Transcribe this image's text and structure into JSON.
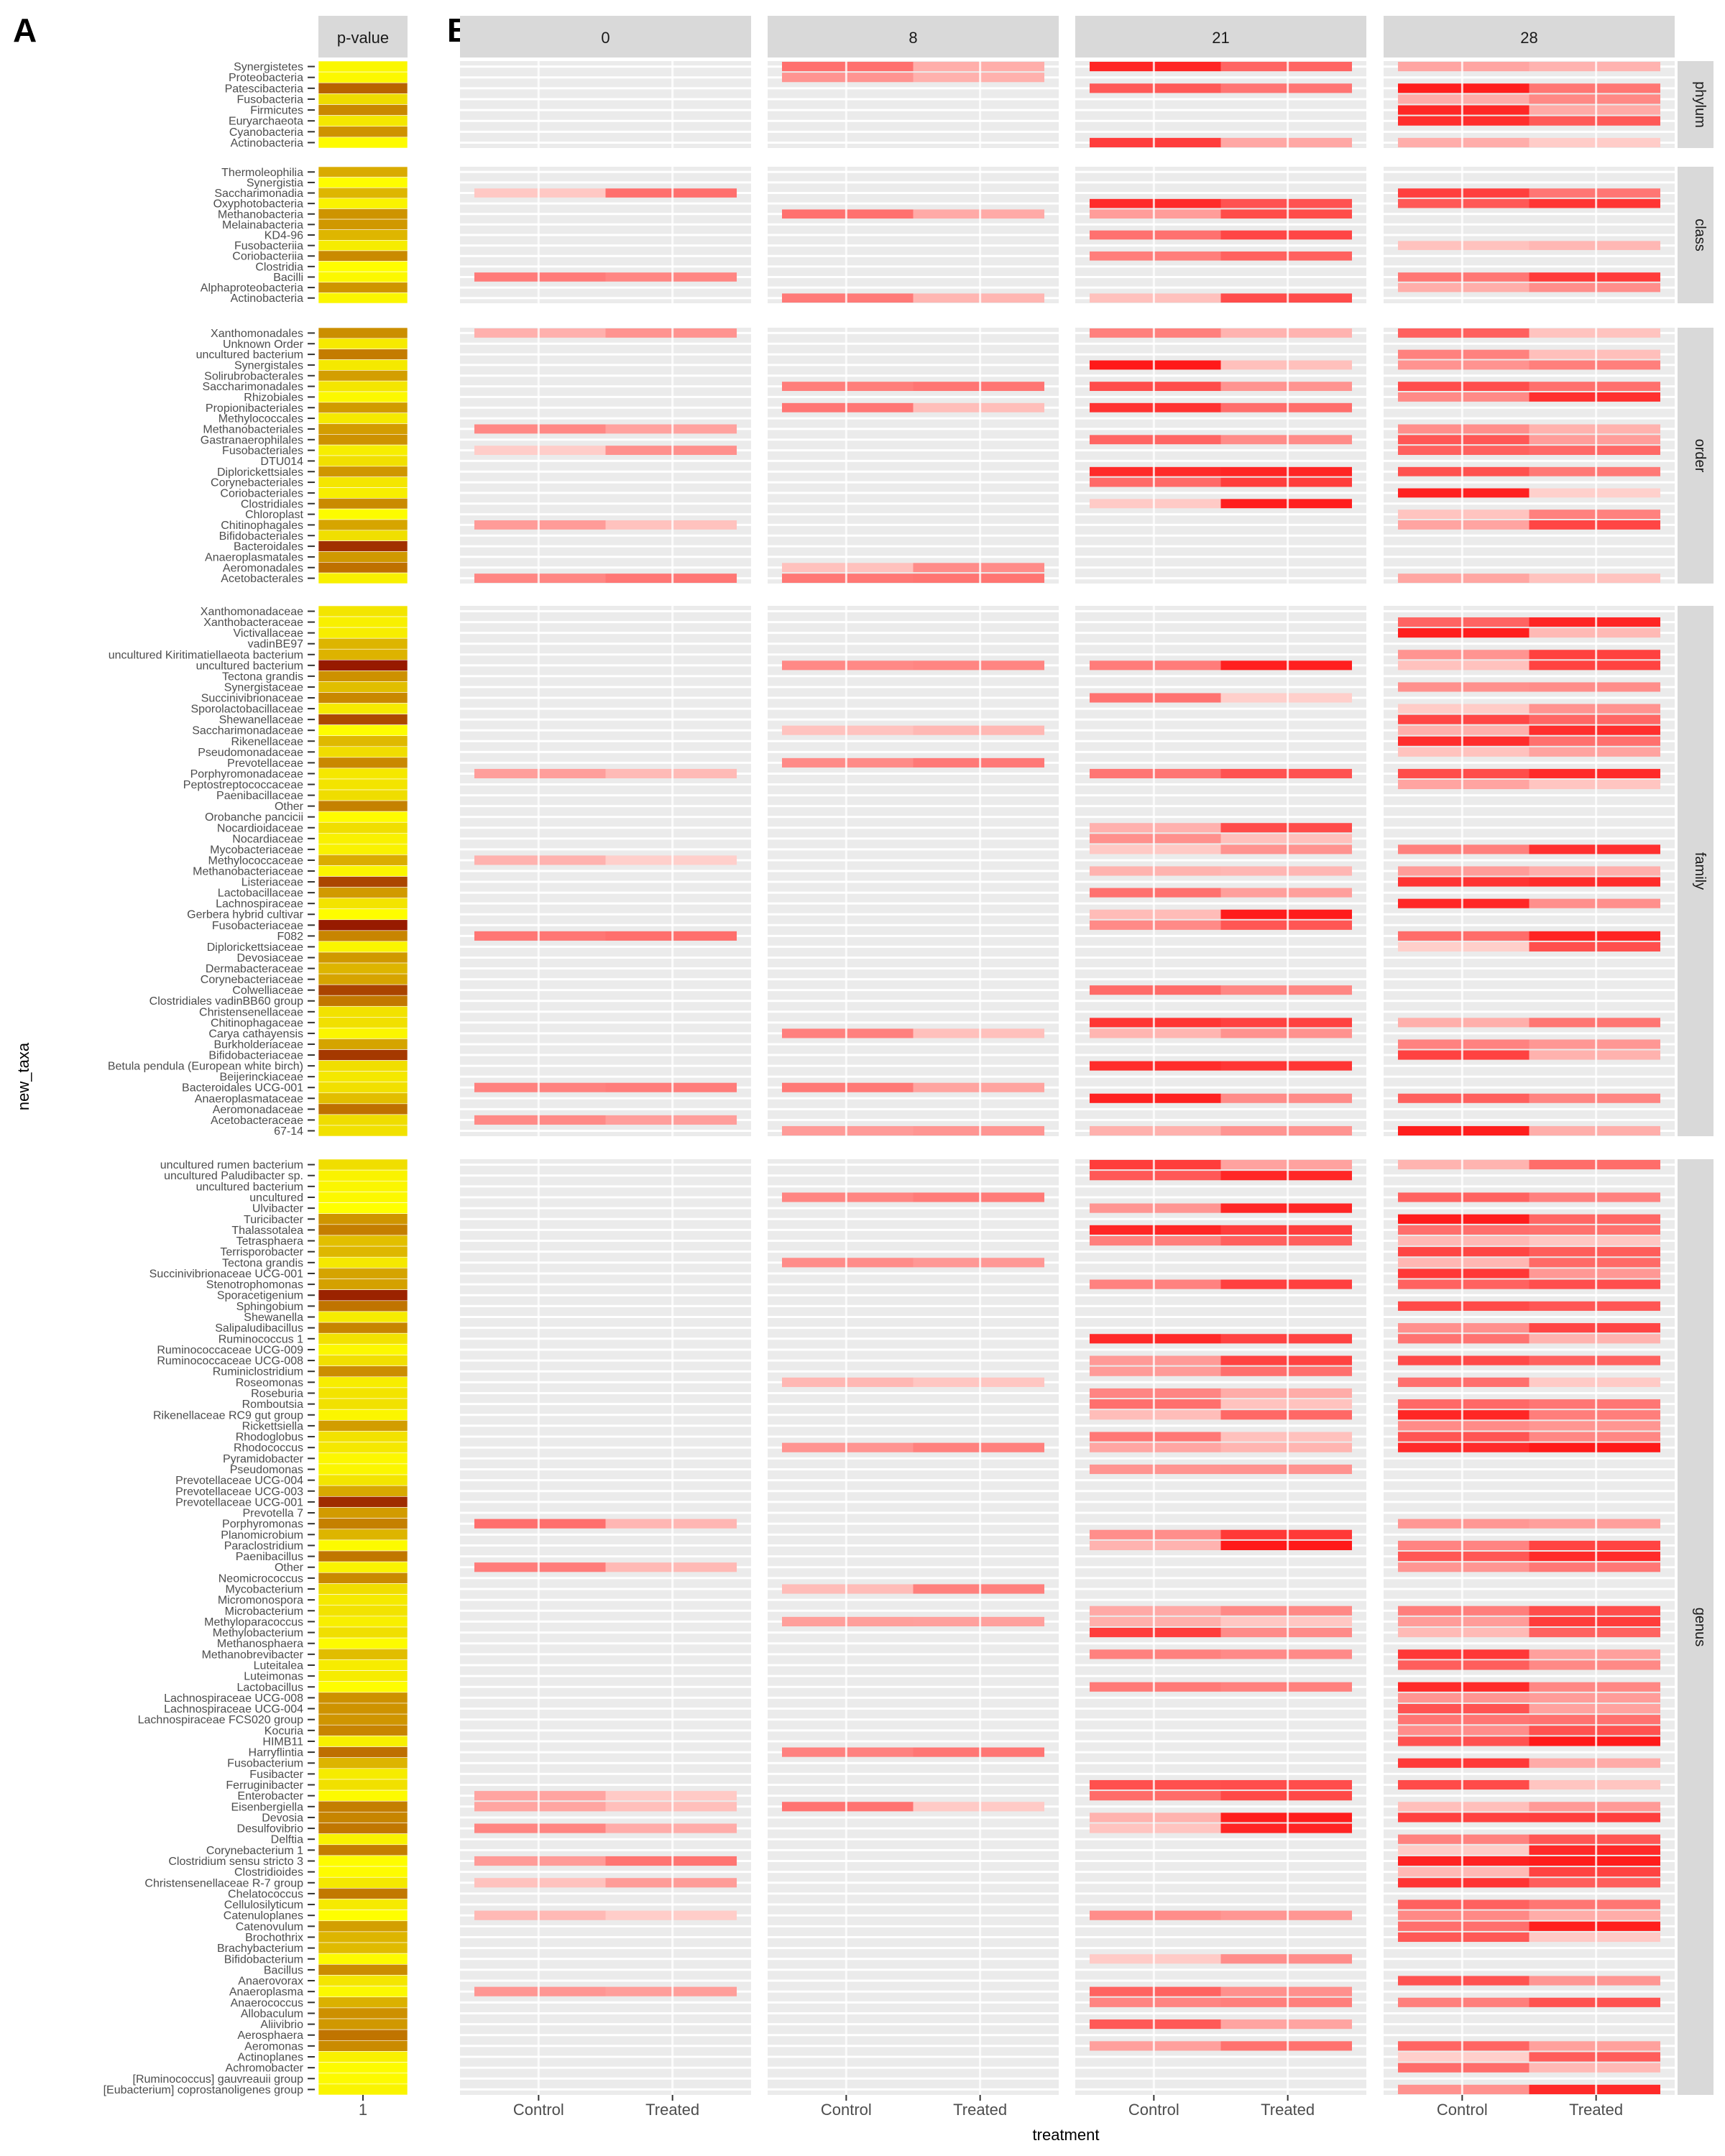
{
  "panel_labels": {
    "a": "A",
    "b": "B"
  },
  "colors": {
    "panel_bg": "#ebebeb",
    "strip_bg": "#d9d9d9",
    "grid": "#ffffff",
    "text": "#4d4d4d",
    "heat_low": "#fff5f0",
    "heat_high": "#ff0000",
    "pval_low": "#ffff00",
    "pval_high": "#8b0000"
  },
  "chart_data": {
    "type": "heatmap",
    "xlabel": "treatment",
    "ylabel": "new_taxa",
    "pvalue_strip": "p-value",
    "pvalue_x_tick": "1",
    "timepoints": [
      "0",
      "8",
      "21",
      "28"
    ],
    "treatments": [
      "Control",
      "Treated"
    ],
    "facets": [
      {
        "name": "phylum",
        "taxa": [
          "Synergistetes",
          "Proteobacteria",
          "Patescibacteria",
          "Fusobacteria",
          "Firmicutes",
          "Euryarchaeota",
          "Cyanobacteria",
          "Actinobacteria"
        ]
      },
      {
        "name": "class",
        "taxa": [
          "Thermoleophilia",
          "Synergistia",
          "Saccharimonadia",
          "Oxyphotobacteria",
          "Methanobacteria",
          "Melainabacteria",
          "KD4-96",
          "Fusobacteriia",
          "Coriobacteriia",
          "Clostridia",
          "Bacilli",
          "Alphaproteobacteria",
          "Actinobacteria"
        ]
      },
      {
        "name": "order",
        "taxa": [
          "Xanthomonadales",
          "Unknown Order",
          "uncultured bacterium",
          "Synergistales",
          "Solirubrobacterales",
          "Saccharimonadales",
          "Rhizobiales",
          "Propionibacteriales",
          "Methylococcales",
          "Methanobacteriales",
          "Gastranaerophilales",
          "Fusobacteriales",
          "DTU014",
          "Diplorickettsiales",
          "Corynebacteriales",
          "Coriobacteriales",
          "Clostridiales",
          "Chloroplast",
          "Chitinophagales",
          "Bifidobacteriales",
          "Bacteroidales",
          "Anaeroplasmatales",
          "Aeromonadales",
          "Acetobacterales"
        ]
      },
      {
        "name": "family",
        "taxa": [
          "Xanthomonadaceae",
          "Xanthobacteraceae",
          "Victivallaceae",
          "vadinBE97",
          "uncultured Kiritimatiellaeota bacterium",
          "uncultured bacterium",
          "Tectona grandis",
          "Synergistaceae",
          "Succinivibrionaceae",
          "Sporolactobacillaceae",
          "Shewanellaceae",
          "Saccharimonadaceae",
          "Rikenellaceae",
          "Pseudomonadaceae",
          "Prevotellaceae",
          "Porphyromonadaceae",
          "Peptostreptococcaceae",
          "Paenibacillaceae",
          "Other",
          "Orobanche pancicii",
          "Nocardioidaceae",
          "Nocardiaceae",
          "Mycobacteriaceae",
          "Methylococcaceae",
          "Methanobacteriaceae",
          "Listeriaceae",
          "Lactobacillaceae",
          "Lachnospiraceae",
          "Gerbera hybrid cultivar",
          "Fusobacteriaceae",
          "F082",
          "Diplorickettsiaceae",
          "Devosiaceae",
          "Dermabacteraceae",
          "Corynebacteriaceae",
          "Colwelliaceae",
          "Clostridiales vadinBB60 group",
          "Christensenellaceae",
          "Chitinophagaceae",
          "Carya cathayensis",
          "Burkholderiaceae",
          "Bifidobacteriaceae",
          "Betula pendula (European white birch)",
          "Beijerinckiaceae",
          "Bacteroidales UCG-001",
          "Anaeroplasmataceae",
          "Aeromonadaceae",
          "Acetobacteraceae",
          "67-14"
        ]
      },
      {
        "name": "genus",
        "taxa": [
          "uncultured rumen bacterium",
          "uncultured Paludibacter sp.",
          "uncultured bacterium",
          "uncultured",
          "Ulvibacter",
          "Turicibacter",
          "Thalassotalea",
          "Tetrasphaera",
          "Terrisporobacter",
          "Tectona grandis",
          "Succinivibrionaceae UCG-001",
          "Stenotrophomonas",
          "Sporacetigenium",
          "Sphingobium",
          "Shewanella",
          "Salipaludibacillus",
          "Ruminococcus 1",
          "Ruminococcaceae UCG-009",
          "Ruminococcaceae UCG-008",
          "Ruminiclostridium",
          "Roseomonas",
          "Roseburia",
          "Romboutsia",
          "Rikenellaceae RC9 gut group",
          "Rickettsiella",
          "Rhodoglobus",
          "Rhodococcus",
          "Pyramidobacter",
          "Pseudomonas",
          "Prevotellaceae UCG-004",
          "Prevotellaceae UCG-003",
          "Prevotellaceae UCG-001",
          "Prevotella 7",
          "Porphyromonas",
          "Planomicrobium",
          "Paraclostridium",
          "Paenibacillus",
          "Other",
          "Neomicrococcus",
          "Mycobacterium",
          "Micromonospora",
          "Microbacterium",
          "Methyloparacoccus",
          "Methylobacterium",
          "Methanosphaera",
          "Methanobrevibacter",
          "Luteitalea",
          "Luteimonas",
          "Lactobacillus",
          "Lachnospiraceae UCG-008",
          "Lachnospiraceae UCG-004",
          "Lachnospiraceae FCS020 group",
          "Kocuria",
          "HIMB11",
          "Harryflintia",
          "Fusobacterium",
          "Fusibacter",
          "Ferruginibacter",
          "Enterobacter",
          "Eisenbergiella",
          "Devosia",
          "Desulfovibrio",
          "Delftia",
          "Corynebacterium 1",
          "Clostridium sensu stricto 3",
          "Clostridioides",
          "Christensenellaceae R-7 group",
          "Chelatococcus",
          "Cellulosilyticum",
          "Catenuloplanes",
          "Catenovulum",
          "Brochothrix",
          "Brachybacterium",
          "Bifidobacterium",
          "Bacillus",
          "Anaerovorax",
          "Anaeroplasma",
          "Anaerococcus",
          "Allobaculum",
          "Aliivibrio",
          "Aerosphaera",
          "Aeromonas",
          "Actinoplanes",
          "Achromobacter",
          "[Ruminococcus] gauvreauii group",
          "[Eubacterium] coprostanoligenes group"
        ]
      }
    ]
  }
}
